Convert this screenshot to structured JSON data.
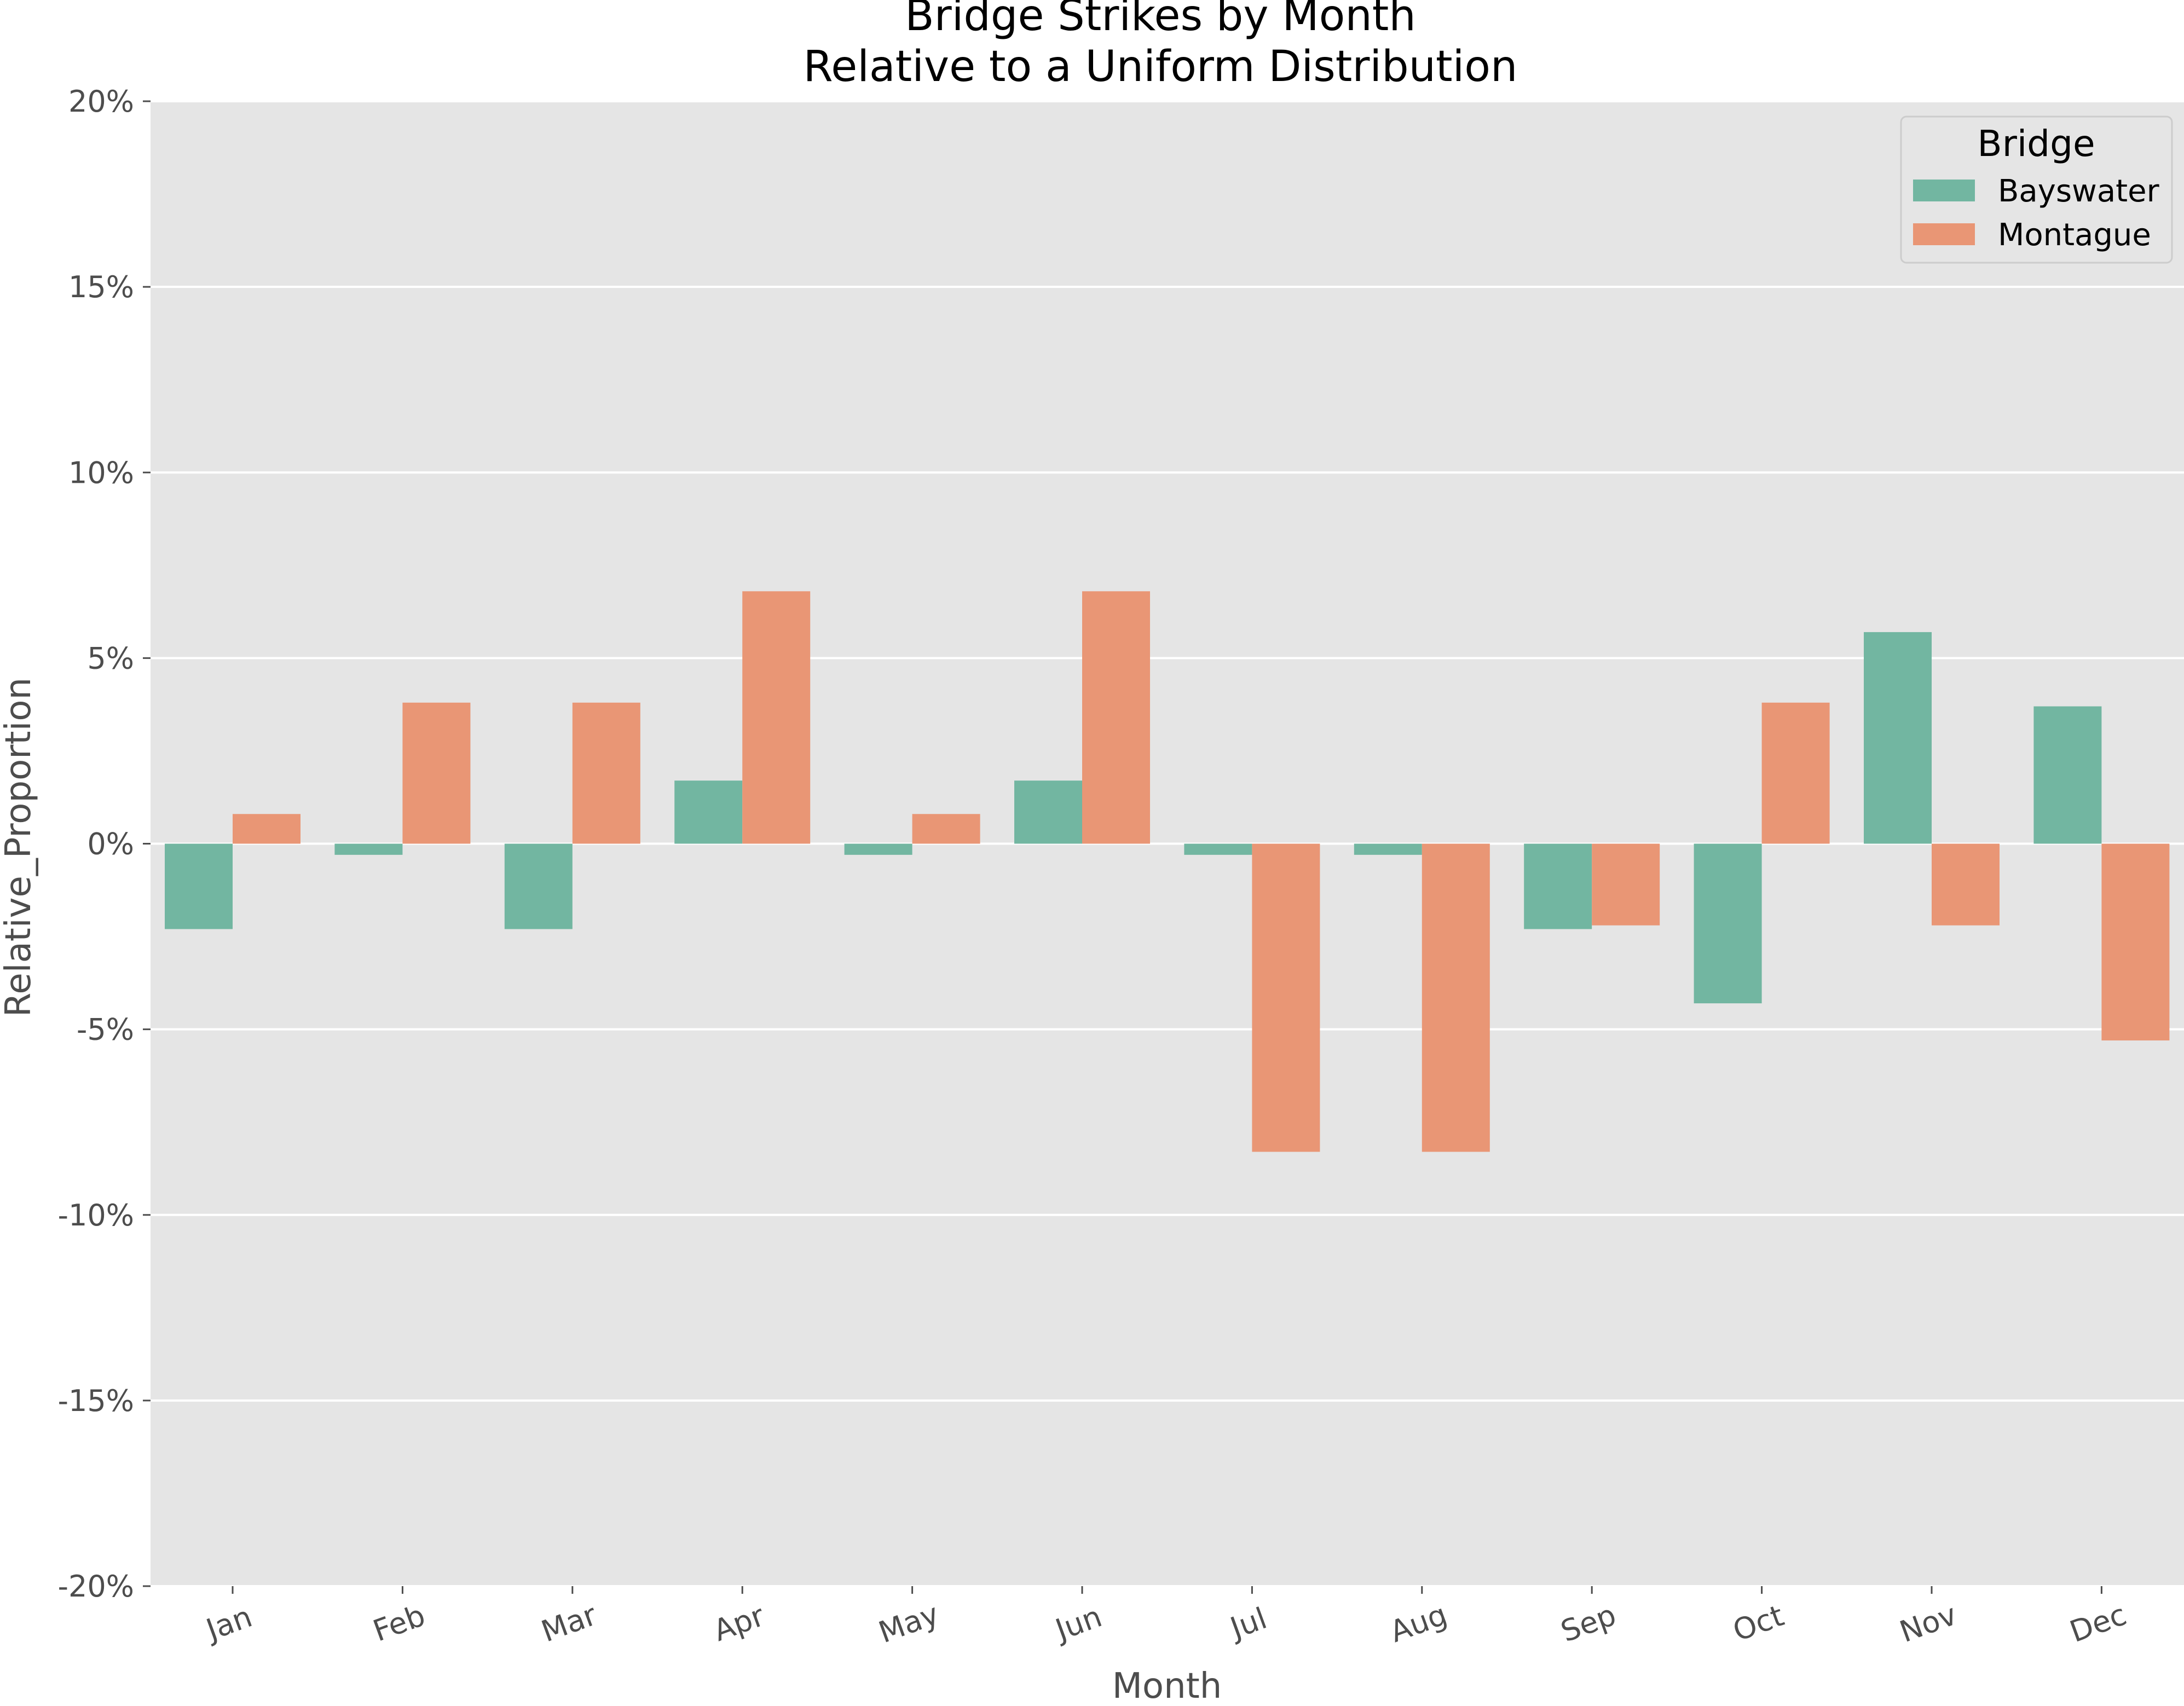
{
  "chart_data": {
    "type": "bar",
    "title_line1": "Bridge Strikes by Month",
    "title_line2": "Relative to a Uniform Distribution",
    "xlabel": "Month",
    "ylabel": "Relative_Proportion",
    "ylim": [
      -20,
      20
    ],
    "yticks": [
      -20,
      -15,
      -10,
      -5,
      0,
      5,
      10,
      15,
      20
    ],
    "ytick_labels": [
      "-20%",
      "-15%",
      "-10%",
      "-5%",
      "0%",
      "5%",
      "10%",
      "15%",
      "20%"
    ],
    "categories": [
      "Jan",
      "Feb",
      "Mar",
      "Apr",
      "May",
      "Jun",
      "Jul",
      "Aug",
      "Sep",
      "Oct",
      "Nov",
      "Dec"
    ],
    "grid": true,
    "legend": {
      "title": "Bridge",
      "placement": "top-right"
    },
    "series": [
      {
        "name": "Bayswater",
        "color": "#72b6a1",
        "values": [
          -2.3,
          -0.3,
          -2.3,
          1.7,
          -0.3,
          1.7,
          -0.3,
          -0.3,
          -2.3,
          -4.3,
          5.7,
          3.7
        ]
      },
      {
        "name": "Montague",
        "color": "#e99675",
        "values": [
          0.8,
          3.8,
          3.8,
          6.8,
          0.8,
          6.8,
          -8.3,
          -8.3,
          -2.2,
          3.8,
          -2.2,
          -5.3
        ]
      }
    ]
  }
}
